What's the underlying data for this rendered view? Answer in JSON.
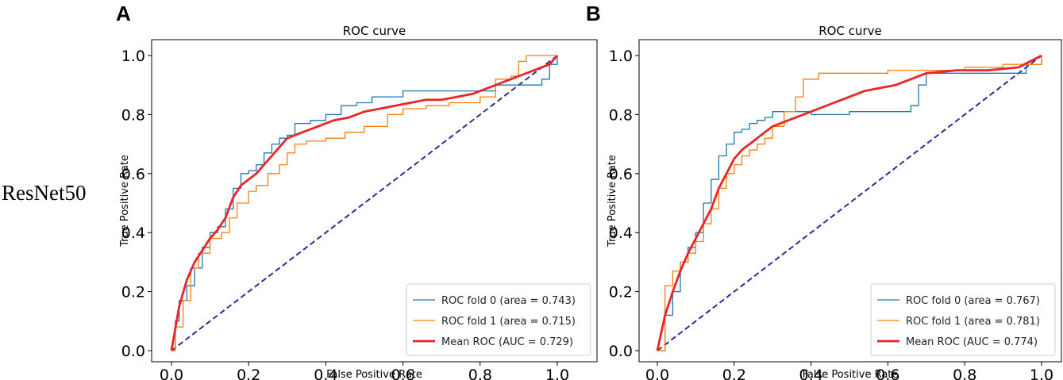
{
  "row_label": "ResNet50",
  "chart_data": [
    {
      "type": "line",
      "panel_letter": "A",
      "title": "ROC curve",
      "xlabel": "False Positive Rate",
      "ylabel": "True Positive Rate",
      "xlim": [
        0,
        1
      ],
      "ylim": [
        0,
        1
      ],
      "xticks": [
        "0.0",
        "0.2",
        "0.4",
        "0.6",
        "0.8",
        "1.0"
      ],
      "yticks": [
        "0.0",
        "0.2",
        "0.4",
        "0.6",
        "0.8",
        "1.0"
      ],
      "legend_position": "lower-right",
      "series": [
        {
          "name": "ROC fold 0 (area = 0.743)",
          "color": "#1f77b4",
          "width": 1.3,
          "step": true,
          "x": [
            0,
            0.01,
            0.02,
            0.04,
            0.06,
            0.08,
            0.1,
            0.12,
            0.14,
            0.16,
            0.18,
            0.2,
            0.22,
            0.24,
            0.26,
            0.28,
            0.3,
            0.32,
            0.36,
            0.4,
            0.44,
            0.48,
            0.52,
            0.56,
            0.6,
            0.7,
            0.8,
            0.84,
            0.9,
            0.96,
            0.98,
            1.0
          ],
          "y": [
            0,
            0.1,
            0.17,
            0.22,
            0.28,
            0.35,
            0.4,
            0.42,
            0.48,
            0.55,
            0.6,
            0.61,
            0.63,
            0.67,
            0.7,
            0.72,
            0.73,
            0.77,
            0.78,
            0.8,
            0.83,
            0.84,
            0.86,
            0.86,
            0.88,
            0.88,
            0.88,
            0.9,
            0.9,
            0.92,
            0.97,
            1.0
          ]
        },
        {
          "name": "ROC fold 1 (area = 0.715)",
          "color": "#ff7f0e",
          "width": 1.3,
          "step": true,
          "x": [
            0,
            0.01,
            0.03,
            0.05,
            0.07,
            0.1,
            0.13,
            0.15,
            0.17,
            0.2,
            0.22,
            0.25,
            0.28,
            0.3,
            0.32,
            0.35,
            0.4,
            0.45,
            0.5,
            0.56,
            0.6,
            0.66,
            0.72,
            0.8,
            0.84,
            0.88,
            0.9,
            0.92,
            1.0
          ],
          "y": [
            0,
            0.08,
            0.17,
            0.28,
            0.33,
            0.38,
            0.4,
            0.45,
            0.5,
            0.54,
            0.56,
            0.6,
            0.63,
            0.67,
            0.7,
            0.71,
            0.72,
            0.74,
            0.76,
            0.8,
            0.82,
            0.83,
            0.84,
            0.86,
            0.92,
            0.93,
            0.98,
            1.0,
            1.0
          ]
        },
        {
          "name": "Mean ROC (AUC = 0.729)",
          "color": "#e8262a",
          "width": 2.8,
          "step": false,
          "x": [
            0,
            0.02,
            0.04,
            0.06,
            0.08,
            0.1,
            0.12,
            0.14,
            0.16,
            0.18,
            0.2,
            0.22,
            0.24,
            0.26,
            0.28,
            0.3,
            0.34,
            0.38,
            0.42,
            0.46,
            0.5,
            0.54,
            0.58,
            0.62,
            0.66,
            0.7,
            0.74,
            0.78,
            0.82,
            0.86,
            0.9,
            0.94,
            0.98,
            1.0
          ],
          "y": [
            0,
            0.15,
            0.24,
            0.3,
            0.34,
            0.38,
            0.41,
            0.45,
            0.52,
            0.56,
            0.58,
            0.6,
            0.63,
            0.66,
            0.69,
            0.72,
            0.74,
            0.76,
            0.78,
            0.79,
            0.81,
            0.82,
            0.83,
            0.84,
            0.85,
            0.85,
            0.86,
            0.87,
            0.89,
            0.91,
            0.93,
            0.95,
            0.97,
            1.0
          ]
        },
        {
          "name": "chance",
          "color": "#2a2f8f",
          "width": 2,
          "dashed": true,
          "step": false,
          "legend": false,
          "x": [
            0,
            1
          ],
          "y": [
            0,
            1
          ]
        }
      ]
    },
    {
      "type": "line",
      "panel_letter": "B",
      "title": "ROC curve",
      "xlabel": "False Positive Rate",
      "ylabel": "True Positive Rate",
      "xlim": [
        0,
        1
      ],
      "ylim": [
        0,
        1
      ],
      "xticks": [
        "0.0",
        "0.2",
        "0.4",
        "0.6",
        "0.8",
        "1.0"
      ],
      "yticks": [
        "0.0",
        "0.2",
        "0.4",
        "0.6",
        "0.8",
        "1.0"
      ],
      "legend_position": "lower-right",
      "series": [
        {
          "name": "ROC fold 0 (area = 0.767)",
          "color": "#1f77b4",
          "width": 1.3,
          "step": true,
          "x": [
            0,
            0.02,
            0.04,
            0.06,
            0.08,
            0.1,
            0.12,
            0.14,
            0.16,
            0.18,
            0.2,
            0.22,
            0.24,
            0.26,
            0.28,
            0.3,
            0.34,
            0.4,
            0.5,
            0.6,
            0.66,
            0.68,
            0.7,
            0.8,
            0.9,
            0.96,
            1.0
          ],
          "y": [
            0,
            0.12,
            0.2,
            0.3,
            0.35,
            0.4,
            0.5,
            0.58,
            0.66,
            0.7,
            0.74,
            0.75,
            0.77,
            0.78,
            0.79,
            0.81,
            0.81,
            0.8,
            0.81,
            0.81,
            0.83,
            0.9,
            0.94,
            0.94,
            0.94,
            0.97,
            1.0
          ]
        },
        {
          "name": "ROC fold 1 (area = 0.781)",
          "color": "#ff7f0e",
          "width": 1.3,
          "step": true,
          "x": [
            0,
            0.02,
            0.04,
            0.06,
            0.08,
            0.1,
            0.12,
            0.14,
            0.16,
            0.18,
            0.2,
            0.22,
            0.24,
            0.26,
            0.28,
            0.3,
            0.33,
            0.36,
            0.38,
            0.42,
            0.5,
            0.6,
            0.7,
            0.8,
            0.9,
            1.0
          ],
          "y": [
            0,
            0.22,
            0.27,
            0.3,
            0.33,
            0.37,
            0.43,
            0.48,
            0.55,
            0.6,
            0.63,
            0.66,
            0.68,
            0.7,
            0.72,
            0.76,
            0.81,
            0.86,
            0.92,
            0.94,
            0.94,
            0.95,
            0.95,
            0.96,
            0.97,
            1.0
          ]
        },
        {
          "name": "Mean ROC (AUC = 0.774)",
          "color": "#e8262a",
          "width": 2.8,
          "step": false,
          "x": [
            0,
            0.02,
            0.04,
            0.06,
            0.08,
            0.1,
            0.12,
            0.14,
            0.16,
            0.18,
            0.2,
            0.22,
            0.24,
            0.26,
            0.28,
            0.3,
            0.34,
            0.38,
            0.42,
            0.46,
            0.5,
            0.54,
            0.58,
            0.62,
            0.66,
            0.7,
            0.78,
            0.86,
            0.94,
            1.0
          ],
          "y": [
            0,
            0.12,
            0.2,
            0.27,
            0.33,
            0.38,
            0.43,
            0.48,
            0.55,
            0.6,
            0.65,
            0.68,
            0.7,
            0.72,
            0.74,
            0.76,
            0.78,
            0.8,
            0.82,
            0.84,
            0.86,
            0.88,
            0.89,
            0.9,
            0.92,
            0.94,
            0.95,
            0.95,
            0.96,
            1.0
          ]
        },
        {
          "name": "chance",
          "color": "#2a2f8f",
          "width": 2,
          "dashed": true,
          "step": false,
          "legend": false,
          "x": [
            0,
            1
          ],
          "y": [
            0,
            1
          ]
        }
      ]
    }
  ]
}
